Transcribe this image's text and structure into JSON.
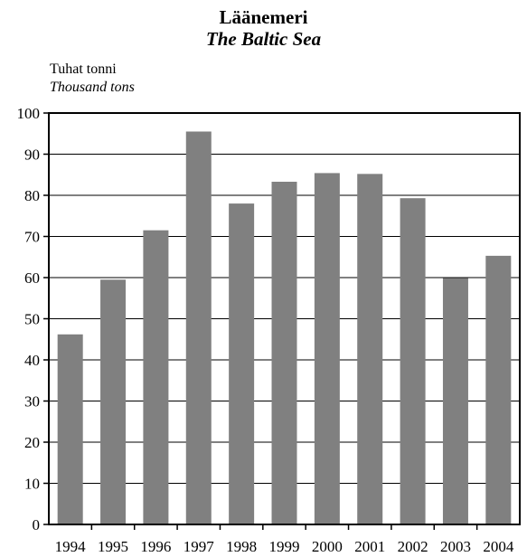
{
  "title_fi": "Läänemeri",
  "title_en": "The Baltic Sea",
  "unit_fi": "Tuhat tonni",
  "unit_en": "Thousand tons",
  "chart_data": {
    "type": "bar",
    "categories": [
      "1994",
      "1995",
      "1996",
      "1997",
      "1998",
      "1999",
      "2000",
      "2001",
      "2002",
      "2003",
      "2004"
    ],
    "values": [
      46.2,
      59.5,
      71.5,
      95.5,
      78,
      83.3,
      85.4,
      85.2,
      79.3,
      59.9,
      65.3
    ],
    "ylim": [
      0,
      100
    ],
    "yticks": [
      0,
      10,
      20,
      30,
      40,
      50,
      60,
      70,
      80,
      90,
      100
    ],
    "grid": true,
    "bar_color": "#808080"
  }
}
